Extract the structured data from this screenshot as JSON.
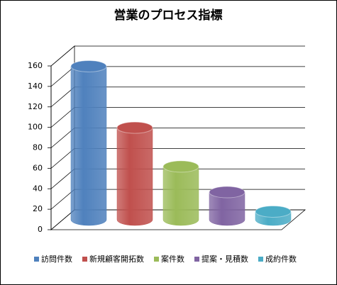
{
  "chart_data": {
    "type": "bar3d-cylinder",
    "title": "営業のプロセス指標",
    "categories": [
      "訪問件数",
      "新規顧客開拓数",
      "案件数",
      "提案・見積数",
      "成約件数"
    ],
    "values": [
      150,
      90,
      52,
      27,
      8
    ],
    "colors": [
      "#4f81bd",
      "#c0504d",
      "#9bbb59",
      "#8064a2",
      "#4bacc6"
    ],
    "ylim": [
      0,
      160
    ],
    "yticks": [
      0,
      20,
      40,
      60,
      80,
      100,
      120,
      140,
      160
    ],
    "grid": true
  }
}
